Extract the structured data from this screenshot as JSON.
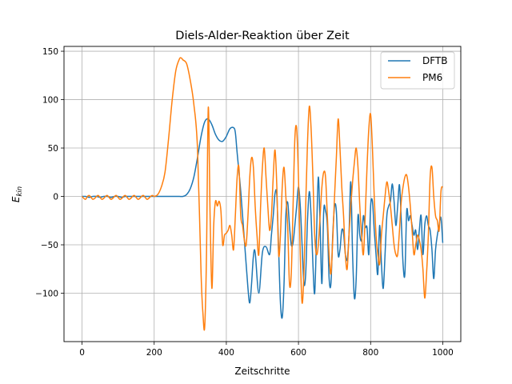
{
  "chart_data": {
    "type": "line",
    "title": "Diels-Alder-Reaktion über Zeit",
    "xlabel": "Zeitschritte",
    "ylabel_base": "E",
    "ylabel_sub": "kin",
    "xlim": [
      -50,
      1050
    ],
    "ylim": [
      -150,
      155
    ],
    "xticks": [
      0,
      200,
      400,
      600,
      800,
      1000
    ],
    "xtick_labels": [
      "0",
      "200",
      "400",
      "600",
      "800",
      "1000"
    ],
    "yticks": [
      -100,
      -50,
      0,
      50,
      100,
      150
    ],
    "ytick_labels": [
      "−100",
      "−50",
      "0",
      "50",
      "100",
      "150"
    ],
    "grid": true,
    "legend_position": "top-right",
    "series": [
      {
        "name": "DFTB",
        "color": "#1f77b4",
        "x": [
          0,
          10,
          20,
          30,
          40,
          50,
          60,
          70,
          80,
          90,
          100,
          110,
          120,
          130,
          140,
          150,
          160,
          170,
          180,
          190,
          200,
          210,
          220,
          230,
          240,
          250,
          260,
          270,
          280,
          290,
          300,
          310,
          320,
          330,
          340,
          350,
          360,
          370,
          380,
          390,
          400,
          410,
          420,
          425,
          430,
          440,
          450,
          460,
          465,
          470,
          475,
          480,
          490,
          500,
          510,
          520,
          525,
          530,
          535,
          540,
          545,
          550,
          555,
          560,
          565,
          570,
          575,
          580,
          585,
          590,
          595,
          600,
          605,
          610,
          615,
          620,
          625,
          630,
          635,
          640,
          645,
          650,
          655,
          660,
          665,
          670,
          675,
          680,
          685,
          690,
          695,
          700,
          705,
          710,
          715,
          720,
          725,
          730,
          735,
          740,
          745,
          750,
          755,
          760,
          765,
          770,
          775,
          780,
          785,
          790,
          795,
          800,
          805,
          810,
          815,
          820,
          825,
          830,
          835,
          840,
          845,
          850,
          855,
          860,
          865,
          870,
          875,
          880,
          885,
          890,
          895,
          900,
          905,
          910,
          915,
          920,
          925,
          930,
          935,
          940,
          945,
          950,
          955,
          960,
          965,
          970,
          975,
          980,
          985,
          990,
          995,
          1000
        ],
        "y": [
          0,
          0,
          -1,
          0,
          0,
          -1,
          0,
          0,
          -1,
          0,
          0,
          -1,
          0,
          0,
          0,
          0,
          0,
          0,
          0,
          0,
          0,
          0,
          0,
          0,
          0,
          0,
          0,
          0,
          0,
          2,
          8,
          20,
          40,
          62,
          77,
          80,
          74,
          64,
          58,
          57,
          62,
          70,
          71,
          66,
          45,
          5,
          -45,
          -95,
          -110,
          -90,
          -62,
          -58,
          -100,
          -58,
          -52,
          -60,
          -40,
          -20,
          3,
          1,
          -55,
          -110,
          -125,
          -90,
          -20,
          -6,
          -30,
          -50,
          -48,
          -30,
          -10,
          10,
          -10,
          -50,
          -90,
          -80,
          -25,
          5,
          -20,
          -70,
          -100,
          -40,
          20,
          -30,
          -90,
          -15,
          -15,
          -30,
          -85,
          -90,
          -40,
          -10,
          -15,
          -60,
          -55,
          -35,
          -38,
          -60,
          -65,
          -40,
          15,
          -60,
          -105,
          -85,
          -20,
          -40,
          -45,
          -20,
          -32,
          -32,
          -60,
          -10,
          -5,
          -35,
          -60,
          -80,
          -30,
          -70,
          -95,
          -60,
          -20,
          -10,
          -5,
          13,
          -5,
          -30,
          -10,
          12,
          -25,
          -70,
          -80,
          -15,
          -25,
          -20,
          -30,
          -40,
          -35,
          -55,
          -35,
          -20,
          -60,
          -30,
          -20,
          -30,
          -35,
          -55,
          -85,
          -55,
          -40,
          -30,
          -22,
          -48
        ]
      },
      {
        "name": "PM6",
        "color": "#ff7f0e",
        "x": [
          0,
          5,
          10,
          15,
          20,
          25,
          30,
          35,
          40,
          45,
          50,
          55,
          60,
          65,
          70,
          75,
          80,
          85,
          90,
          95,
          100,
          105,
          110,
          115,
          120,
          125,
          130,
          135,
          140,
          145,
          150,
          155,
          160,
          165,
          170,
          175,
          180,
          185,
          190,
          195,
          200,
          210,
          220,
          230,
          240,
          250,
          260,
          270,
          275,
          280,
          290,
          300,
          310,
          320,
          330,
          335,
          340,
          345,
          350,
          355,
          360,
          365,
          370,
          375,
          380,
          385,
          390,
          395,
          400,
          405,
          410,
          415,
          420,
          425,
          430,
          435,
          440,
          445,
          450,
          455,
          460,
          465,
          470,
          475,
          480,
          485,
          490,
          495,
          500,
          505,
          510,
          515,
          520,
          525,
          530,
          535,
          540,
          545,
          550,
          555,
          560,
          565,
          570,
          575,
          580,
          585,
          590,
          595,
          600,
          605,
          610,
          615,
          620,
          625,
          630,
          635,
          640,
          645,
          650,
          655,
          660,
          665,
          670,
          675,
          680,
          685,
          690,
          695,
          700,
          705,
          710,
          715,
          720,
          725,
          730,
          735,
          740,
          745,
          750,
          755,
          760,
          765,
          770,
          775,
          780,
          785,
          790,
          795,
          800,
          805,
          810,
          815,
          820,
          825,
          830,
          835,
          840,
          845,
          850,
          855,
          860,
          865,
          870,
          875,
          880,
          885,
          890,
          895,
          900,
          905,
          910,
          915,
          920,
          925,
          930,
          935,
          940,
          945,
          950,
          955,
          960,
          965,
          970,
          975,
          980,
          985,
          990,
          995,
          1000
        ],
        "y": [
          0,
          -2,
          -3,
          0,
          1,
          -1,
          -3,
          -2,
          0,
          1,
          -1,
          -3,
          -2,
          0,
          1,
          -1,
          -3,
          -2,
          0,
          1,
          -1,
          -3,
          -2,
          0,
          1,
          -1,
          -3,
          -2,
          0,
          1,
          -1,
          -3,
          -2,
          0,
          1,
          -1,
          -3,
          -2,
          0,
          1,
          0,
          2,
          10,
          25,
          60,
          100,
          130,
          142,
          143,
          141,
          137,
          120,
          95,
          50,
          -80,
          -120,
          -135,
          -60,
          92,
          -20,
          -95,
          -30,
          -5,
          -10,
          -5,
          -15,
          -50,
          -40,
          -38,
          -35,
          -30,
          -40,
          -55,
          -20,
          20,
          30,
          -20,
          -30,
          -45,
          -50,
          -20,
          20,
          40,
          30,
          -10,
          -40,
          -60,
          -10,
          30,
          50,
          20,
          -10,
          -35,
          -20,
          20,
          48,
          10,
          -60,
          -40,
          10,
          30,
          0,
          -30,
          -90,
          -80,
          -10,
          60,
          70,
          20,
          -60,
          -110,
          -80,
          -10,
          55,
          93,
          70,
          20,
          -40,
          -60,
          -50,
          -20,
          10,
          25,
          20,
          -20,
          -60,
          -80,
          -45,
          0,
          40,
          80,
          50,
          10,
          -20,
          -60,
          -75,
          -40,
          -10,
          15,
          35,
          50,
          30,
          -10,
          -40,
          -60,
          -20,
          30,
          70,
          85,
          50,
          0,
          -40,
          -60,
          -70,
          -40,
          -20,
          0,
          15,
          5,
          -10,
          -30,
          -50,
          -60,
          -60,
          -35,
          -5,
          10,
          20,
          22,
          10,
          -10,
          -35,
          -60,
          -50,
          -40,
          -45,
          -55,
          -75,
          -105,
          -80,
          -40,
          20,
          30,
          0,
          -20,
          -25,
          -35,
          5,
          10
        ]
      }
    ]
  }
}
